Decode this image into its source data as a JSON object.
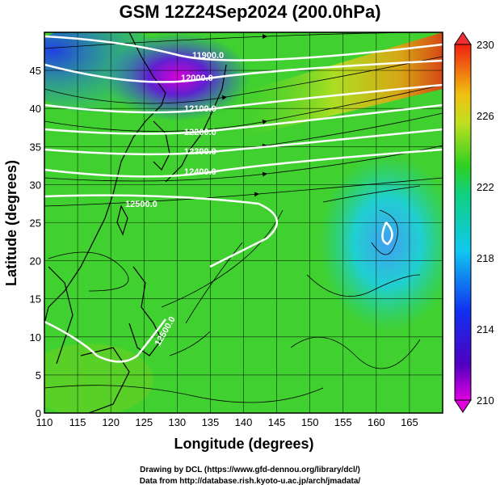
{
  "title": "GSM 12Z24Sep2024 (200.0hPa)",
  "axes": {
    "xlabel": "Longitude (degrees)",
    "ylabel": "Latitude  (degrees)",
    "xlim": [
      110,
      170
    ],
    "ylim": [
      0,
      50
    ],
    "xticks": [
      "110",
      "115",
      "120",
      "125",
      "130",
      "135",
      "140",
      "145",
      "150",
      "155",
      "160",
      "165"
    ],
    "yticks": [
      "0",
      "5",
      "10",
      "15",
      "20",
      "25",
      "30",
      "35",
      "40",
      "45"
    ]
  },
  "colorbar": {
    "min": 210,
    "max": 230,
    "ticks": [
      "210",
      "214",
      "218",
      "222",
      "226",
      "230"
    ]
  },
  "contours": [
    {
      "label": "11900.0"
    },
    {
      "label": "12000.0"
    },
    {
      "label": "12100.0"
    },
    {
      "label": "12200.0"
    },
    {
      "label": "12300.0"
    },
    {
      "label": "12400.0"
    },
    {
      "label": "12500.0"
    },
    {
      "label": "12500.0"
    }
  ],
  "credits": {
    "line1": "Drawing by DCL (https://www.gfd-dennou.org/library/dcl/)",
    "line2": "Data from http://database.rish.kyoto-u.ac.jp/arch/jmadata/"
  }
}
